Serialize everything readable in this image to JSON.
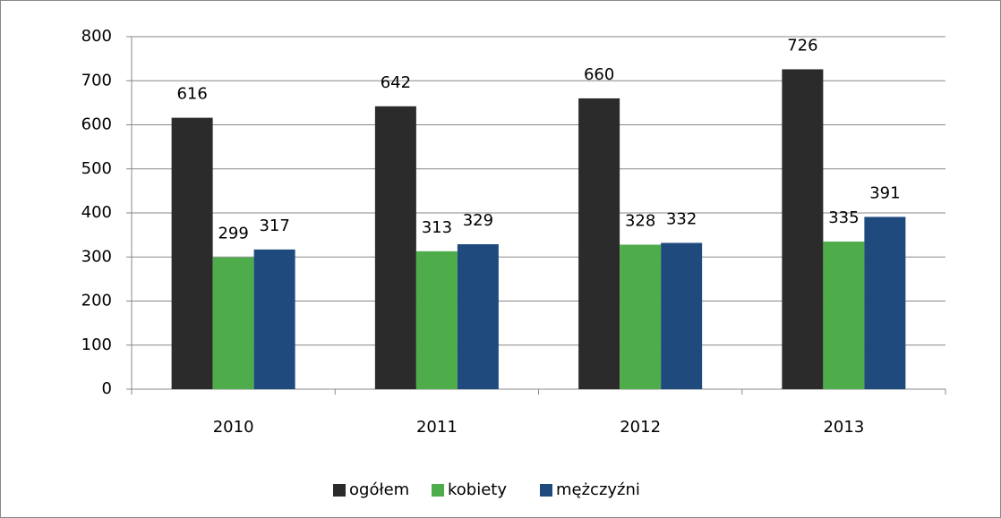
{
  "chart_data": {
    "type": "bar",
    "categories": [
      "2010",
      "2011",
      "2012",
      "2013"
    ],
    "series": [
      {
        "name": "ogółem",
        "color": "#2b2b2b",
        "values": [
          616,
          642,
          660,
          726
        ]
      },
      {
        "name": "kobiety",
        "color": "#4ead4a",
        "values": [
          299,
          313,
          328,
          335
        ]
      },
      {
        "name": "mężczyźni",
        "color": "#1f4a7e",
        "values": [
          317,
          329,
          332,
          391
        ]
      }
    ],
    "ylim": [
      0,
      800
    ],
    "yticks": [
      0,
      100,
      200,
      300,
      400,
      500,
      600,
      700,
      800
    ],
    "grid": true,
    "legend": "bottom",
    "value_labels_shown": true
  }
}
